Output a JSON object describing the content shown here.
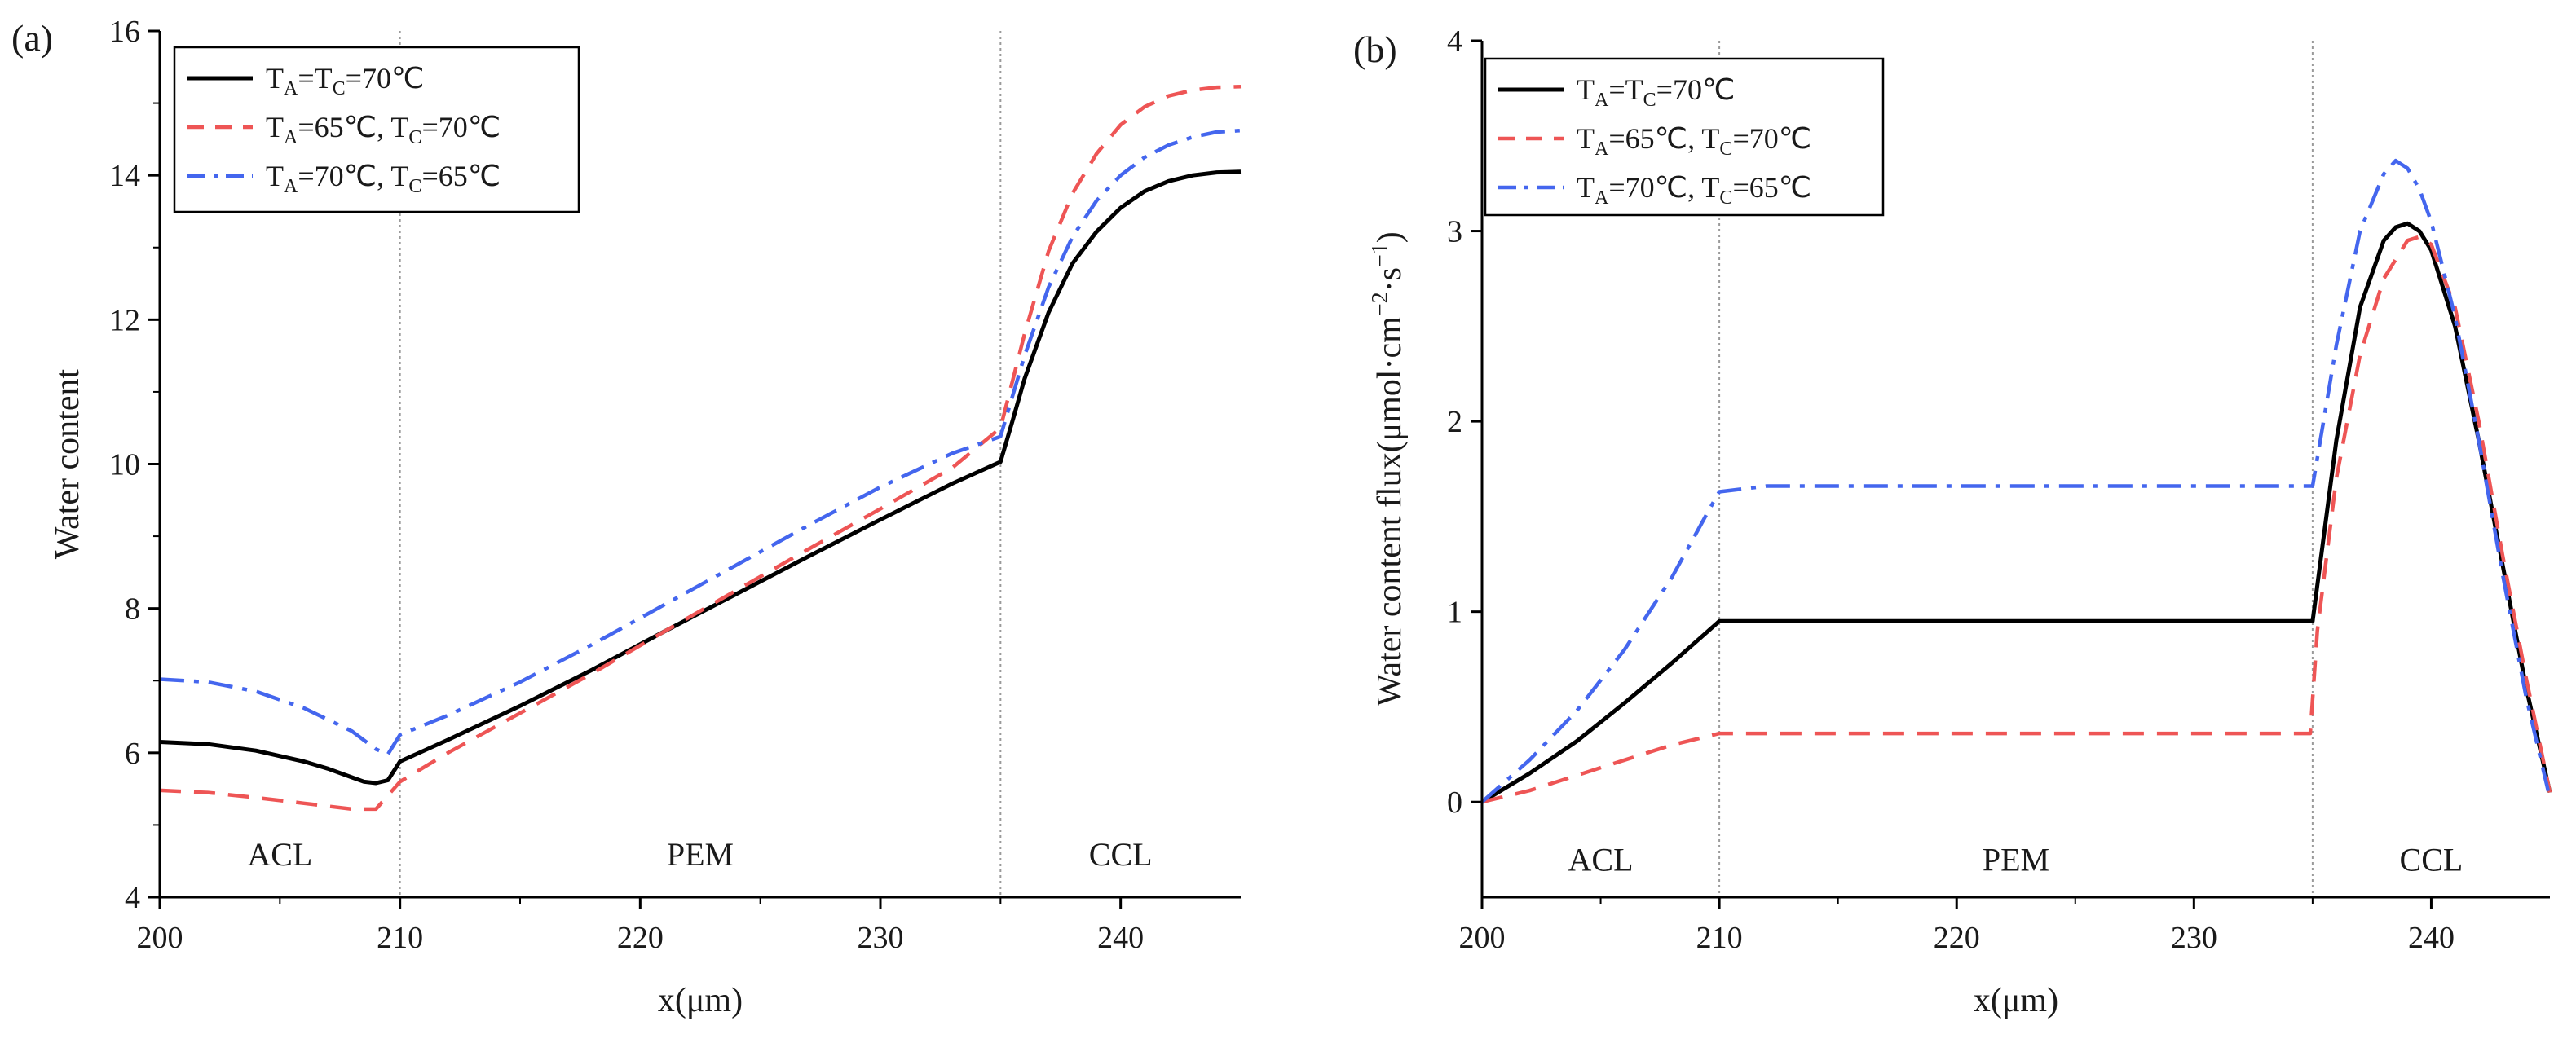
{
  "chart_data": [
    {
      "type": "line",
      "panel_label": "(a)",
      "title": "",
      "xlabel": "x(μm)",
      "ylabel": "Water content",
      "xlim": [
        200,
        245
      ],
      "ylim": [
        4,
        16
      ],
      "xticks": [
        200,
        210,
        220,
        230,
        240
      ],
      "yticks": [
        4,
        6,
        8,
        10,
        12,
        14,
        16
      ],
      "vlines": [
        210,
        235
      ],
      "regions": [
        {
          "label": "ACL",
          "x": 205,
          "y": 4.6
        },
        {
          "label": "PEM",
          "x": 222.5,
          "y": 4.6
        },
        {
          "label": "CCL",
          "x": 240,
          "y": 4.6
        }
      ],
      "legend_position": "top-left",
      "series": [
        {
          "name": "TA=TC=70℃",
          "legend_main": [
            "T",
            "A",
            "=T",
            "C",
            "=70℃"
          ],
          "color": "#000000",
          "dash": "solid",
          "x": [
            200,
            202,
            204,
            206,
            207,
            208,
            208.5,
            209,
            209.5,
            210,
            212,
            215,
            218,
            221,
            224,
            227,
            230,
            233,
            235,
            235.5,
            236,
            237,
            238,
            239,
            240,
            241,
            242,
            243,
            244,
            245
          ],
          "y": [
            6.15,
            6.12,
            6.03,
            5.88,
            5.78,
            5.66,
            5.6,
            5.58,
            5.62,
            5.88,
            6.18,
            6.65,
            7.15,
            7.68,
            8.2,
            8.72,
            9.23,
            9.73,
            10.03,
            10.6,
            11.18,
            12.1,
            12.78,
            13.22,
            13.55,
            13.78,
            13.92,
            14.0,
            14.04,
            14.05
          ]
        },
        {
          "name": "TA=65℃, TC=70℃",
          "legend_main": [
            "T",
            "A",
            "=65℃,  T",
            "C",
            "=70℃"
          ],
          "color": "#ee5555",
          "dash": "dashed",
          "x": [
            200,
            202,
            204,
            206,
            208,
            209,
            210,
            212,
            215,
            218,
            221,
            224,
            227,
            230,
            233,
            235,
            236,
            237,
            238,
            239,
            240,
            241,
            242,
            243,
            244,
            245
          ],
          "y": [
            5.48,
            5.45,
            5.38,
            5.3,
            5.22,
            5.22,
            5.6,
            6.0,
            6.55,
            7.1,
            7.68,
            8.25,
            8.82,
            9.38,
            9.95,
            10.5,
            11.8,
            12.95,
            13.75,
            14.3,
            14.7,
            14.95,
            15.1,
            15.18,
            15.22,
            15.23
          ]
        },
        {
          "name": "TA=70℃, TC=65℃",
          "legend_main": [
            "T",
            "A",
            "=70℃,  T",
            "C",
            "=65℃"
          ],
          "color": "#4466ee",
          "dash": "dashdot",
          "x": [
            200,
            202,
            204,
            206,
            208,
            209,
            209.5,
            210,
            212,
            215,
            218,
            221,
            224,
            227,
            230,
            233,
            235,
            236,
            237,
            238,
            239,
            240,
            241,
            242,
            243,
            244,
            245
          ],
          "y": [
            7.02,
            6.98,
            6.85,
            6.62,
            6.3,
            6.05,
            5.98,
            6.25,
            6.52,
            6.98,
            7.5,
            8.05,
            8.6,
            9.15,
            9.68,
            10.15,
            10.38,
            11.5,
            12.45,
            13.15,
            13.65,
            14.0,
            14.25,
            14.42,
            14.53,
            14.6,
            14.62
          ]
        }
      ]
    },
    {
      "type": "line",
      "panel_label": "(b)",
      "title": "",
      "xlabel": "x(μm)",
      "ylabel_main": "Water content flux(μmol·cm",
      "ylabel_sup1": "−2",
      "ylabel_mid": "·s",
      "ylabel_sup2": "−1",
      "ylabel_end": ")",
      "xlim": [
        200,
        245
      ],
      "ylim": [
        -0.5,
        4
      ],
      "xticks": [
        200,
        210,
        220,
        230,
        240
      ],
      "yticks": [
        0,
        1,
        2,
        3,
        4
      ],
      "vlines": [
        210,
        235
      ],
      "regions": [
        {
          "label": "ACL",
          "x": 205,
          "y": -0.3
        },
        {
          "label": "PEM",
          "x": 222.5,
          "y": -0.3
        },
        {
          "label": "CCL",
          "x": 240,
          "y": -0.3
        }
      ],
      "legend_position": "top-left",
      "series": [
        {
          "name": "TA=TC=70℃",
          "legend_main": [
            "T",
            "A",
            "=T",
            "C",
            "=70℃"
          ],
          "color": "#000000",
          "dash": "solid",
          "x": [
            200,
            202,
            204,
            206,
            208,
            210,
            215,
            220,
            225,
            230,
            235,
            236,
            237,
            238,
            238.5,
            239,
            239.5,
            240,
            241,
            242,
            243,
            244,
            245
          ],
          "y": [
            0,
            0.15,
            0.32,
            0.52,
            0.73,
            0.95,
            0.95,
            0.95,
            0.95,
            0.95,
            0.95,
            1.9,
            2.6,
            2.95,
            3.02,
            3.04,
            3.0,
            2.9,
            2.5,
            1.9,
            1.25,
            0.6,
            0.05
          ]
        },
        {
          "name": "TA=65℃, TC=70℃",
          "legend_main": [
            "T",
            "A",
            "=65℃,  T",
            "C",
            "=70℃"
          ],
          "color": "#ee5555",
          "dash": "dashed",
          "x": [
            200,
            202,
            204,
            206,
            208,
            210,
            215,
            220,
            225,
            230,
            234.9,
            235.2,
            236,
            237,
            238,
            239,
            239.5,
            240,
            241,
            242,
            243,
            244,
            245
          ],
          "y": [
            0,
            0.06,
            0.14,
            0.22,
            0.3,
            0.36,
            0.36,
            0.36,
            0.36,
            0.36,
            0.36,
            0.9,
            1.7,
            2.35,
            2.75,
            2.95,
            2.97,
            2.93,
            2.6,
            2.0,
            1.3,
            0.65,
            0.05
          ]
        },
        {
          "name": "TA=70℃, TC=65℃",
          "legend_main": [
            "T",
            "A",
            "=70℃,  T",
            "C",
            "=65℃"
          ],
          "color": "#4466ee",
          "dash": "dashdot",
          "x": [
            200,
            202,
            204,
            206,
            208,
            209.5,
            210,
            212,
            215,
            220,
            225,
            230,
            235,
            236,
            237,
            238,
            238.5,
            239,
            239.5,
            240,
            241,
            242,
            243,
            244,
            245
          ],
          "y": [
            0,
            0.22,
            0.48,
            0.8,
            1.18,
            1.52,
            1.63,
            1.66,
            1.66,
            1.66,
            1.66,
            1.66,
            1.66,
            2.4,
            3.0,
            3.3,
            3.37,
            3.33,
            3.22,
            3.05,
            2.55,
            1.9,
            1.2,
            0.55,
            0.02
          ]
        }
      ]
    }
  ]
}
